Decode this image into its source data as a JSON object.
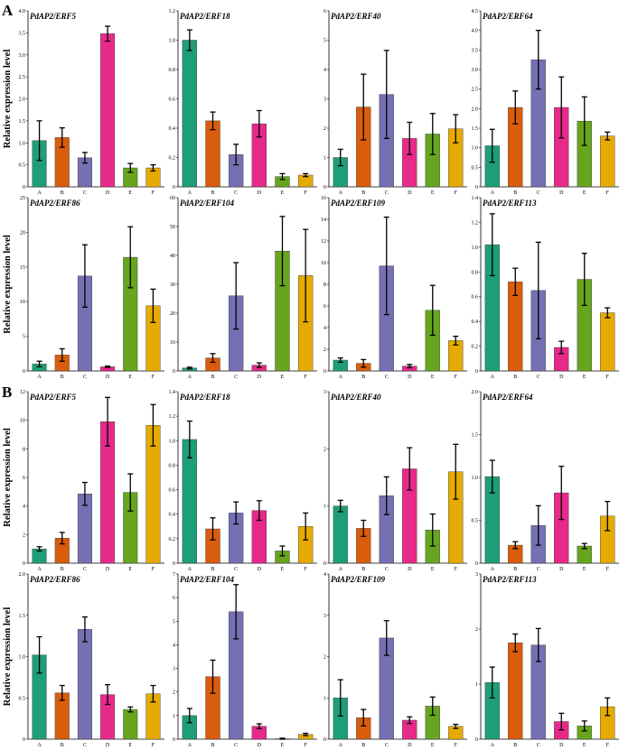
{
  "figure": {
    "panel_labels": [
      "A",
      "B"
    ],
    "ylabel": "Relative expression level"
  },
  "colors": [
    "#1e9e78",
    "#da5c0d",
    "#7570b3",
    "#e7298a",
    "#67a51e",
    "#e6ab02"
  ],
  "chart_data": [
    {
      "type": "bar",
      "title": "PdAP2/ERF5",
      "categories": [
        "A",
        "B",
        "C",
        "D",
        "E",
        "F"
      ],
      "values": [
        1.05,
        1.12,
        0.66,
        3.48,
        0.43,
        0.43
      ],
      "errors": [
        0.45,
        0.22,
        0.12,
        0.17,
        0.1,
        0.07
      ],
      "ylim": [
        0,
        4
      ],
      "yticks": [
        0,
        0.5,
        1.0,
        1.5,
        2.0,
        2.5,
        3.0,
        3.5,
        4.0
      ],
      "tick_decimals": 1,
      "ylabel": "Relative expression level"
    },
    {
      "type": "bar",
      "title": "PdAP2/ERF18",
      "categories": [
        "A",
        "B",
        "C",
        "D",
        "E",
        "F"
      ],
      "values": [
        1.0,
        0.45,
        0.22,
        0.43,
        0.07,
        0.08
      ],
      "errors": [
        0.07,
        0.06,
        0.07,
        0.09,
        0.02,
        0.01
      ],
      "ylim": [
        0,
        1.2
      ],
      "yticks": [
        0,
        0.2,
        0.4,
        0.6,
        0.8,
        1.0,
        1.2
      ],
      "tick_decimals": 1
    },
    {
      "type": "bar",
      "title": "PdAP2/ERF40",
      "categories": [
        "A",
        "B",
        "C",
        "D",
        "E",
        "F"
      ],
      "values": [
        1.0,
        2.72,
        3.15,
        1.65,
        1.8,
        1.98
      ],
      "errors": [
        0.28,
        1.12,
        1.5,
        0.55,
        0.7,
        0.48
      ],
      "ylim": [
        0,
        6
      ],
      "yticks": [
        0,
        1,
        2,
        3,
        4,
        5,
        6
      ],
      "tick_decimals": 0
    },
    {
      "type": "bar",
      "title": "PdAP2/ERF64",
      "categories": [
        "A",
        "B",
        "C",
        "D",
        "E",
        "F"
      ],
      "values": [
        1.05,
        2.03,
        3.25,
        2.03,
        1.68,
        1.3
      ],
      "errors": [
        0.42,
        0.42,
        0.75,
        0.78,
        0.62,
        0.1
      ],
      "ylim": [
        0,
        4.5
      ],
      "yticks": [
        0,
        0.5,
        1.0,
        1.5,
        2.0,
        2.5,
        3.0,
        3.5,
        4.0,
        4.5
      ],
      "tick_decimals": 1
    },
    {
      "type": "bar",
      "title": "PdAP2/ERF86",
      "categories": [
        "A",
        "B",
        "C",
        "D",
        "E",
        "F"
      ],
      "values": [
        1.0,
        2.3,
        13.7,
        0.6,
        16.4,
        9.4
      ],
      "errors": [
        0.4,
        0.9,
        4.5,
        0.1,
        4.4,
        2.4
      ],
      "ylim": [
        0,
        25
      ],
      "yticks": [
        0,
        5,
        10,
        15,
        20,
        25
      ],
      "tick_decimals": 0,
      "ylabel": "Relative expression level"
    },
    {
      "type": "bar",
      "title": "PdAP2/ERF104",
      "categories": [
        "A",
        "B",
        "C",
        "D",
        "E",
        "F"
      ],
      "values": [
        1.0,
        4.5,
        26.0,
        2.0,
        41.5,
        33.0
      ],
      "errors": [
        0.3,
        1.5,
        11.5,
        0.8,
        12.0,
        16.0
      ],
      "ylim": [
        0,
        60
      ],
      "yticks": [
        0,
        10,
        20,
        30,
        40,
        50,
        60
      ],
      "tick_decimals": 0
    },
    {
      "type": "bar",
      "title": "PdAP2/ERF109",
      "categories": [
        "A",
        "B",
        "C",
        "D",
        "E",
        "F"
      ],
      "values": [
        1.0,
        0.7,
        9.7,
        0.45,
        5.6,
        2.8
      ],
      "errors": [
        0.2,
        0.35,
        4.5,
        0.15,
        2.3,
        0.4
      ],
      "ylim": [
        0,
        16
      ],
      "yticks": [
        0,
        2,
        4,
        6,
        8,
        10,
        12,
        14,
        16
      ],
      "tick_decimals": 0
    },
    {
      "type": "bar",
      "title": "PdAP2/ERF113",
      "categories": [
        "A",
        "B",
        "C",
        "D",
        "E",
        "F"
      ],
      "values": [
        1.02,
        0.72,
        0.65,
        0.19,
        0.74,
        0.47
      ],
      "errors": [
        0.25,
        0.11,
        0.39,
        0.05,
        0.21,
        0.04
      ],
      "ylim": [
        0,
        1.4
      ],
      "yticks": [
        0,
        0.2,
        0.4,
        0.6,
        0.8,
        1.0,
        1.2,
        1.4
      ],
      "tick_decimals": 1
    },
    {
      "type": "bar",
      "title": "PdAP2/ERF5",
      "categories": [
        "A",
        "B",
        "C",
        "D",
        "E",
        "F"
      ],
      "values": [
        1.0,
        1.75,
        4.85,
        9.9,
        4.95,
        9.65
      ],
      "errors": [
        0.15,
        0.4,
        0.8,
        1.7,
        1.3,
        1.45
      ],
      "ylim": [
        0,
        12
      ],
      "yticks": [
        0,
        2,
        4,
        6,
        8,
        10,
        12
      ],
      "tick_decimals": 0,
      "ylabel": "Relative expression level"
    },
    {
      "type": "bar",
      "title": "PdAP2/ERF18",
      "categories": [
        "A",
        "B",
        "C",
        "D",
        "E",
        "F"
      ],
      "values": [
        1.01,
        0.28,
        0.41,
        0.43,
        0.1,
        0.3
      ],
      "errors": [
        0.15,
        0.09,
        0.09,
        0.08,
        0.04,
        0.11
      ],
      "ylim": [
        0,
        1.4
      ],
      "yticks": [
        0,
        0.2,
        0.4,
        0.6,
        0.8,
        1.0,
        1.2,
        1.4
      ],
      "tick_decimals": 1
    },
    {
      "type": "bar",
      "title": "PdAP2/ERF40",
      "categories": [
        "A",
        "B",
        "C",
        "D",
        "E",
        "F"
      ],
      "values": [
        1.0,
        0.61,
        1.18,
        1.65,
        0.58,
        1.6
      ],
      "errors": [
        0.1,
        0.14,
        0.33,
        0.37,
        0.28,
        0.48
      ],
      "ylim": [
        0,
        3
      ],
      "yticks": [
        0,
        1,
        2,
        3
      ],
      "tick_decimals": 0
    },
    {
      "type": "bar",
      "title": "PdAP2/ERF64",
      "categories": [
        "A",
        "B",
        "C",
        "D",
        "E",
        "F"
      ],
      "values": [
        1.01,
        0.21,
        0.44,
        0.82,
        0.2,
        0.55
      ],
      "errors": [
        0.19,
        0.04,
        0.23,
        0.31,
        0.03,
        0.17
      ],
      "ylim": [
        0,
        2
      ],
      "yticks": [
        0,
        0.5,
        1.0,
        1.5,
        2.0
      ],
      "tick_decimals": 1
    },
    {
      "type": "bar",
      "title": "PdAP2/ERF86",
      "categories": [
        "A",
        "B",
        "C",
        "D",
        "E",
        "F"
      ],
      "values": [
        1.02,
        0.56,
        1.33,
        0.54,
        0.36,
        0.55
      ],
      "errors": [
        0.22,
        0.09,
        0.15,
        0.12,
        0.03,
        0.1
      ],
      "ylim": [
        0,
        2.0
      ],
      "yticks": [
        0,
        0.5,
        1.0,
        1.5,
        2.0
      ],
      "tick_decimals": 1,
      "ylabel": "Relative expression level"
    },
    {
      "type": "bar",
      "title": "PdAP2/ERF104",
      "categories": [
        "A",
        "B",
        "C",
        "D",
        "E",
        "F"
      ],
      "values": [
        1.0,
        2.65,
        5.4,
        0.55,
        0.02,
        0.2
      ],
      "errors": [
        0.3,
        0.7,
        1.15,
        0.1,
        0.02,
        0.05
      ],
      "ylim": [
        0,
        7
      ],
      "yticks": [
        0,
        1,
        2,
        3,
        4,
        5,
        6,
        7
      ],
      "tick_decimals": 0
    },
    {
      "type": "bar",
      "title": "PdAP2/ERF109",
      "categories": [
        "A",
        "B",
        "C",
        "D",
        "E",
        "F"
      ],
      "values": [
        1.0,
        0.52,
        2.45,
        0.46,
        0.8,
        0.31
      ],
      "errors": [
        0.44,
        0.2,
        0.42,
        0.08,
        0.22,
        0.05
      ],
      "ylim": [
        0,
        4
      ],
      "yticks": [
        0,
        1,
        2,
        3,
        4
      ],
      "tick_decimals": 0
    },
    {
      "type": "bar",
      "title": "PdAP2/ERF113",
      "categories": [
        "A",
        "B",
        "C",
        "D",
        "E",
        "F"
      ],
      "values": [
        1.03,
        1.75,
        1.71,
        0.32,
        0.24,
        0.59
      ],
      "errors": [
        0.28,
        0.16,
        0.3,
        0.15,
        0.09,
        0.16
      ],
      "ylim": [
        0,
        3
      ],
      "yticks": [
        0,
        1,
        2,
        3
      ],
      "tick_decimals": 0
    }
  ]
}
